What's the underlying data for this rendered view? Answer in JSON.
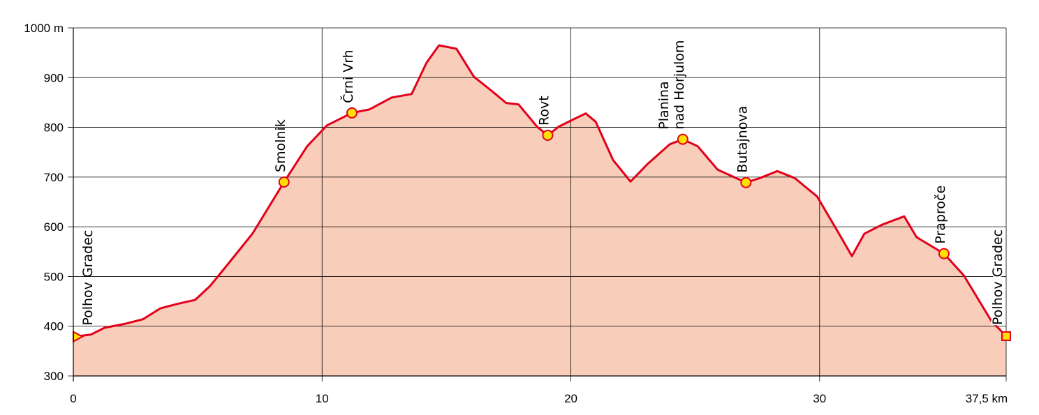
{
  "chart_data": {
    "type": "area",
    "xlim": [
      0,
      37.5
    ],
    "ylim": [
      300,
      1000
    ],
    "xticks": [
      0,
      10,
      20,
      30,
      {
        "value": 37.5,
        "label": "37,5 km"
      }
    ],
    "yticks": [
      300,
      400,
      500,
      600,
      700,
      800,
      900,
      {
        "value": 1000,
        "label": "1000 m"
      }
    ],
    "grid": true,
    "series": [
      {
        "color": "#e2001a",
        "fill": "#f8cdb9",
        "x": [
          0,
          0.7,
          1.26,
          2.1,
          2.8,
          3.5,
          4.2,
          4.9,
          5.5,
          6.3,
          7.2,
          8.47,
          9.4,
          10.2,
          11.2,
          11.9,
          12.8,
          13.6,
          14.2,
          14.7,
          15.4,
          16.1,
          16.8,
          17.4,
          17.9,
          18.65,
          19.07,
          19.5,
          20.06,
          20.6,
          21.0,
          21.7,
          22.4,
          23.1,
          23.98,
          24.5,
          25.1,
          25.9,
          27.04,
          27.6,
          28.3,
          29.0,
          29.9,
          30.7,
          31.3,
          31.8,
          32.5,
          33.4,
          33.9,
          35.0,
          35.8,
          36.9,
          37.5
        ],
        "values": [
          379,
          383,
          397,
          405,
          414,
          436,
          445,
          453,
          481,
          530,
          586,
          690,
          762,
          804,
          829,
          836,
          860,
          867,
          930,
          965,
          958,
          902,
          874,
          849,
          846,
          801,
          784,
          801,
          815,
          828,
          811,
          734,
          691,
          727,
          766,
          776,
          762,
          715,
          689,
          698,
          712,
          698,
          661,
          593,
          541,
          586,
          604,
          621,
          579,
          546,
          502,
          411,
          380
        ]
      }
    ],
    "waypoints": {
      "marker_color": "#ffe000",
      "labels": [
        "Polhov Gradec",
        "Smolnik",
        "Črni Vrh",
        "Rovt",
        [
          "Planina",
          "nad Horjulom"
        ],
        "Butajnova",
        "Praproče",
        "Polhov Gradec"
      ],
      "x": [
        0,
        8.47,
        11.2,
        19.07,
        24.5,
        27.04,
        35.0,
        37.5
      ],
      "values": [
        379,
        690,
        829,
        784,
        776,
        689,
        546,
        380
      ]
    }
  }
}
